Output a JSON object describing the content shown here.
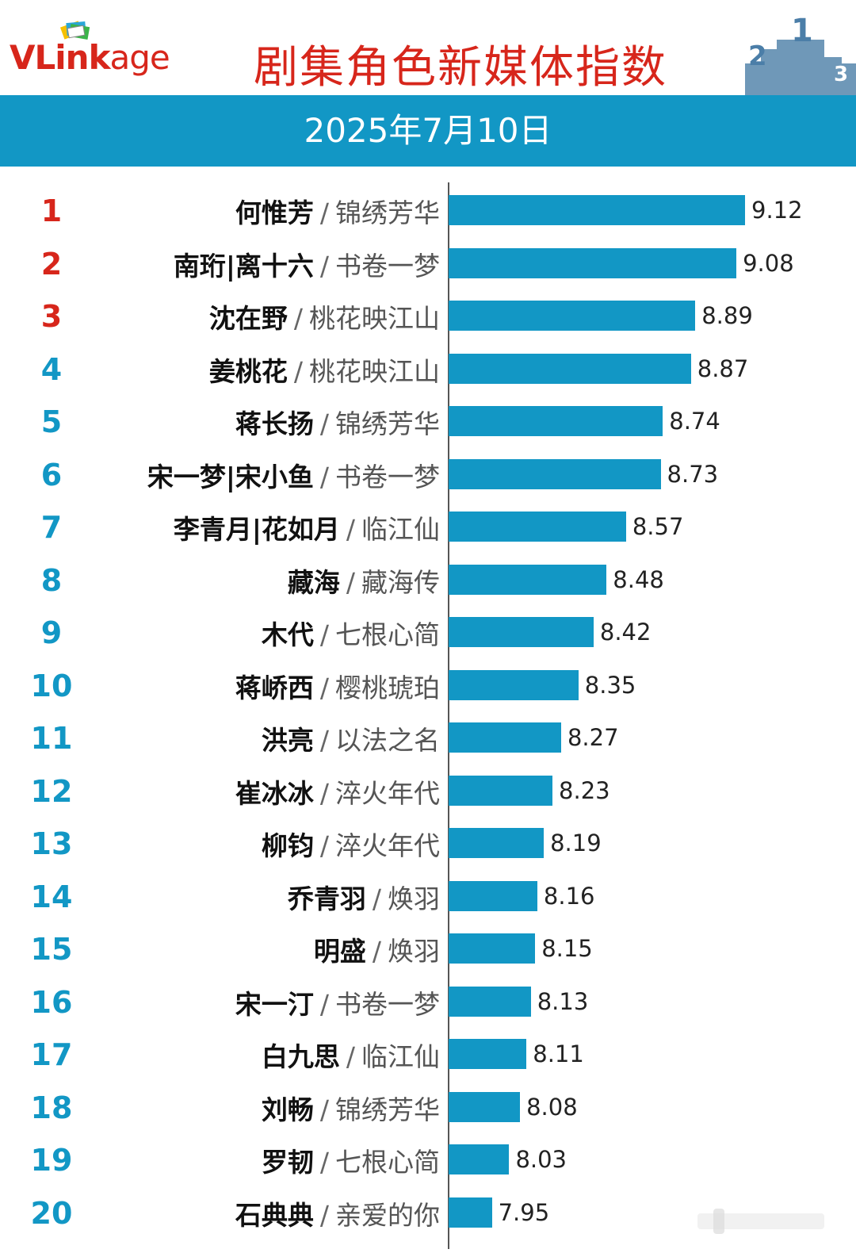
{
  "header": {
    "logo_brand_vl": "VLink",
    "logo_brand_age": "age",
    "title": "剧集角色新媒体指数"
  },
  "date_band": {
    "text": "2025年7月10日"
  },
  "colors": {
    "accent_blue": "#1297c5",
    "brand_red": "#d7261b"
  },
  "chart_data": {
    "type": "bar",
    "orientation": "horizontal",
    "title": "剧集角色新媒体指数",
    "subtitle": "2025年7月10日",
    "xlim": [
      0,
      9.5
    ],
    "grid": false,
    "categories": [
      {
        "rank": "1",
        "name": "何惟芳",
        "show": "锦绣芳华"
      },
      {
        "rank": "2",
        "name": "南珩|离十六",
        "show": "书卷一梦"
      },
      {
        "rank": "3",
        "name": "沈在野",
        "show": "桃花映江山"
      },
      {
        "rank": "4",
        "name": "姜桃花",
        "show": "桃花映江山"
      },
      {
        "rank": "5",
        "name": "蒋长扬",
        "show": "锦绣芳华"
      },
      {
        "rank": "6",
        "name": "宋一梦|宋小鱼",
        "show": "书卷一梦"
      },
      {
        "rank": "7",
        "name": "李青月|花如月",
        "show": "临江仙"
      },
      {
        "rank": "8",
        "name": "藏海",
        "show": "藏海传"
      },
      {
        "rank": "9",
        "name": "木代",
        "show": "七根心简"
      },
      {
        "rank": "10",
        "name": "蒋峤西",
        "show": "樱桃琥珀"
      },
      {
        "rank": "11",
        "name": "洪亮",
        "show": "以法之名"
      },
      {
        "rank": "12",
        "name": "崔冰冰",
        "show": "淬火年代"
      },
      {
        "rank": "13",
        "name": "柳钧",
        "show": "淬火年代"
      },
      {
        "rank": "14",
        "name": "乔青羽",
        "show": "焕羽"
      },
      {
        "rank": "15",
        "name": "明盛",
        "show": "焕羽"
      },
      {
        "rank": "16",
        "name": "宋一汀",
        "show": "书卷一梦"
      },
      {
        "rank": "17",
        "name": "白九思",
        "show": "临江仙"
      },
      {
        "rank": "18",
        "name": "刘畅",
        "show": "锦绣芳华"
      },
      {
        "rank": "19",
        "name": "罗韧",
        "show": "七根心简"
      },
      {
        "rank": "20",
        "name": "石典典",
        "show": "亲爱的你"
      }
    ],
    "values": [
      9.12,
      9.08,
      8.89,
      8.87,
      8.74,
      8.73,
      8.57,
      8.48,
      8.42,
      8.35,
      8.27,
      8.23,
      8.19,
      8.16,
      8.15,
      8.13,
      8.11,
      8.08,
      8.03,
      7.95
    ],
    "value_labels": [
      "9.12",
      "9.08",
      "8.89",
      "8.87",
      "8.74",
      "8.73",
      "8.57",
      "8.48",
      "8.42",
      "8.35",
      "8.27",
      "8.23",
      "8.19",
      "8.16",
      "8.15",
      "8.13",
      "8.11",
      "8.08",
      "8.03",
      "7.95"
    ],
    "separator": "/"
  }
}
